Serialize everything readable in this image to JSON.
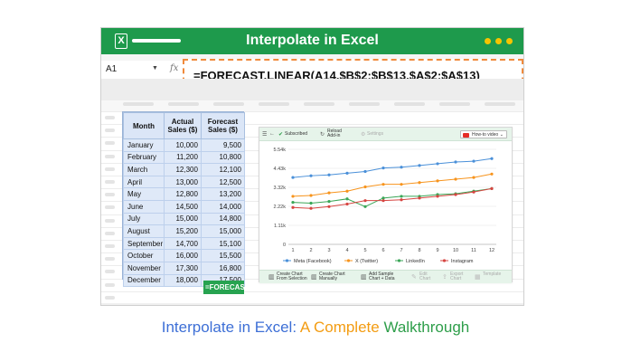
{
  "window": {
    "title": "Interpolate in Excel",
    "logo_letter": "X",
    "accent_color": "#1e9a4c",
    "dot_color": "#f7c400"
  },
  "formula_bar": {
    "name_box": "A1",
    "fx_label": "fx",
    "formula": "=FORECAST.LINEAR(A14,$B$2:$B$13,$A$2:$A$13)"
  },
  "table": {
    "headers": [
      "Month",
      "Actual Sales ($)",
      "Forecast Sales ($)"
    ],
    "rows": [
      [
        "January",
        "10,000",
        "9,500"
      ],
      [
        "February",
        "11,200",
        "10,800"
      ],
      [
        "March",
        "12,300",
        "12,100"
      ],
      [
        "April",
        "13,000",
        "12,500"
      ],
      [
        "May",
        "12,800",
        "13,200"
      ],
      [
        "June",
        "14,500",
        "14,000"
      ],
      [
        "July",
        "15,000",
        "14,800"
      ],
      [
        "August",
        "15,200",
        "15,000"
      ],
      [
        "September",
        "14,700",
        "15,100"
      ],
      [
        "October",
        "16,000",
        "15,500"
      ],
      [
        "November",
        "17,300",
        "16,800"
      ],
      [
        "December",
        "18,000",
        "17,500"
      ]
    ],
    "forecast_cell": "=FORECAST"
  },
  "chart_panel": {
    "toolbar": {
      "subscribed": "Subscribed",
      "reload": "Reload Add-in",
      "settings": "Settings",
      "how_to": "How-to video"
    },
    "bottom_toolbar": [
      {
        "label": "Create Chart From Selection",
        "icon": "chart-icon",
        "enabled": true
      },
      {
        "label": "Create Chart Manually",
        "icon": "chart-icon",
        "enabled": true
      },
      {
        "label": "Add Sample Chart + Data",
        "icon": "chart-icon",
        "enabled": true
      },
      {
        "label": "Edit Chart",
        "icon": "edit-icon",
        "enabled": false
      },
      {
        "label": "Export Chart",
        "icon": "export-icon",
        "enabled": false
      },
      {
        "label": "Template",
        "icon": "template-icon",
        "enabled": false
      }
    ]
  },
  "chart_data": {
    "type": "line",
    "x": [
      1,
      2,
      3,
      4,
      5,
      6,
      7,
      8,
      9,
      10,
      11,
      12
    ],
    "y_ticks": [
      "5.54k",
      "4.43k",
      "3.32k",
      "2.22k",
      "1.11k",
      "0"
    ],
    "ylim": [
      0,
      5540
    ],
    "grid": true,
    "legend": "bottom",
    "series": [
      {
        "name": "Meta (Facebook)",
        "color": "#4a90d9",
        "values": [
          3900,
          4000,
          4050,
          4150,
          4250,
          4450,
          4500,
          4600,
          4700,
          4800,
          4850,
          5000
        ]
      },
      {
        "name": "X (Twitter)",
        "color": "#f7941d",
        "values": [
          2800,
          2850,
          3000,
          3100,
          3350,
          3500,
          3500,
          3600,
          3700,
          3800,
          3900,
          4100
        ]
      },
      {
        "name": "LinkedIn",
        "color": "#3aa657",
        "values": [
          2450,
          2400,
          2500,
          2650,
          2200,
          2700,
          2800,
          2800,
          2900,
          2950,
          3100,
          3250
        ]
      },
      {
        "name": "Instagram",
        "color": "#d64541",
        "values": [
          2150,
          2100,
          2200,
          2350,
          2550,
          2550,
          2600,
          2700,
          2800,
          2900,
          3050,
          3250
        ]
      }
    ]
  },
  "caption": {
    "part1": "Interpolate in Excel:",
    "part2": " A Complete",
    "part3": " Walkthrough"
  }
}
